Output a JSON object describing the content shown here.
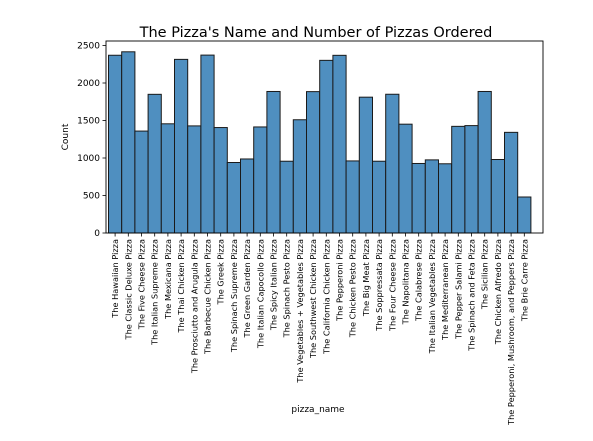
{
  "chart_data": {
    "type": "bar",
    "title": "The Pizza's Name and Number of Pizzas Ordered",
    "xlabel": "pizza_name",
    "ylabel": "Count",
    "ylim": [
      0,
      2560
    ],
    "yticks": [
      0,
      500,
      1000,
      1500,
      2000,
      2500
    ],
    "bar_color": "#4f8fc0",
    "edge_color": "#1a1a1a",
    "categories": [
      "The Hawaiian Pizza",
      "The Classic Deluxe Pizza",
      "The Five Cheese Pizza",
      "The Italian Supreme Pizza",
      "The Mexicana Pizza",
      "The Thai Chicken Pizza",
      "The Prosciutto and Arugula Pizza",
      "The Barbecue Chicken Pizza",
      "The Greek Pizza",
      "The Spinach Supreme Pizza",
      "The Green Garden Pizza",
      "The Italian Capocollo Pizza",
      "The Spicy Italian Pizza",
      "The Spinach Pesto Pizza",
      "The Vegetables + Vegetables Pizza",
      "The Southwest Chicken Pizza",
      "The California Chicken Pizza",
      "The Pepperoni Pizza",
      "The Chicken Pesto Pizza",
      "The Big Meat Pizza",
      "The Soppressata Pizza",
      "The Four Cheese Pizza",
      "The Napolitana Pizza",
      "The Calabrese Pizza",
      "The Italian Vegetables Pizza",
      "The Mediterranean Pizza",
      "The Pepper Salami Pizza",
      "The Spinach and Feta Pizza",
      "The Sicilian Pizza",
      "The Chicken Alfredo Pizza",
      "The Pepperoni, Mushroom, and Peppers Pizza",
      "The Brie Carre Pizza"
    ],
    "values": [
      2370,
      2416,
      1359,
      1849,
      1456,
      2315,
      1428,
      2372,
      1406,
      940,
      987,
      1414,
      1887,
      957,
      1510,
      1885,
      2302,
      2369,
      961,
      1811,
      957,
      1850,
      1451,
      927,
      975,
      923,
      1422,
      1432,
      1887,
      980,
      1342,
      480
    ]
  }
}
